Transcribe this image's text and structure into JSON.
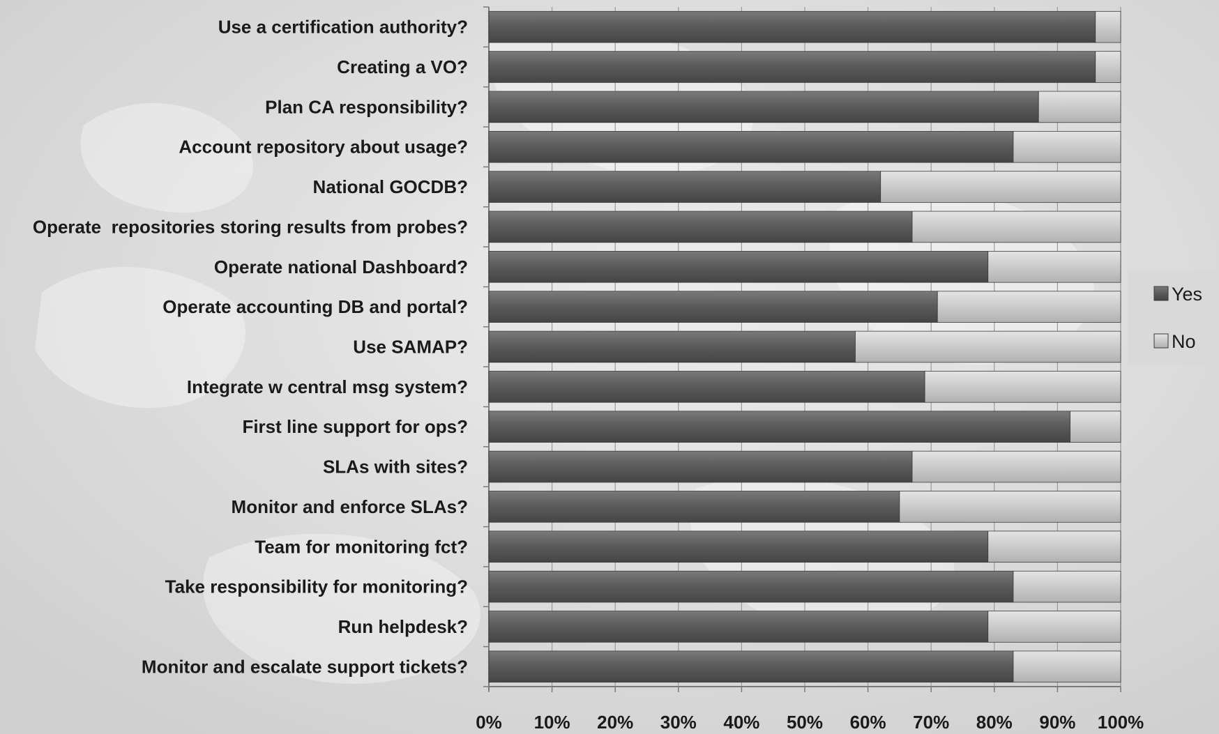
{
  "chart_data": {
    "type": "bar",
    "orientation": "horizontal",
    "stacked": true,
    "percent_stacked": true,
    "title": "",
    "xlabel": "",
    "ylabel": "",
    "xlim": [
      0,
      100
    ],
    "x_ticks": [
      "0%",
      "10%",
      "20%",
      "30%",
      "40%",
      "50%",
      "60%",
      "70%",
      "80%",
      "90%",
      "100%"
    ],
    "grid": true,
    "legend_position": "right",
    "categories": [
      "Use a certification authority?",
      "Creating a VO?",
      "Plan CA responsibility?",
      "Account repository about usage?",
      "National GOCDB?",
      "Operate  repositories storing results from probes?",
      "Operate national Dashboard?",
      "Operate accounting DB and portal?",
      "Use SAMAP?",
      "Integrate w central msg system?",
      "First line support for ops?",
      "SLAs with sites?",
      "Monitor and enforce SLAs?",
      "Team for monitoring fct?",
      "Take responsibility for monitoring?",
      "Run helpdesk?",
      "Monitor and escalate support tickets?"
    ],
    "series": [
      {
        "name": "Yes",
        "color": "#5a5a5a",
        "values": [
          96,
          96,
          87,
          83,
          62,
          67,
          79,
          71,
          58,
          69,
          92,
          67,
          65,
          79,
          83,
          79,
          83
        ]
      },
      {
        "name": "No",
        "color": "#c8c8c8",
        "values": [
          4,
          4,
          13,
          17,
          38,
          33,
          21,
          29,
          42,
          31,
          8,
          33,
          35,
          21,
          17,
          21,
          17
        ]
      }
    ]
  }
}
